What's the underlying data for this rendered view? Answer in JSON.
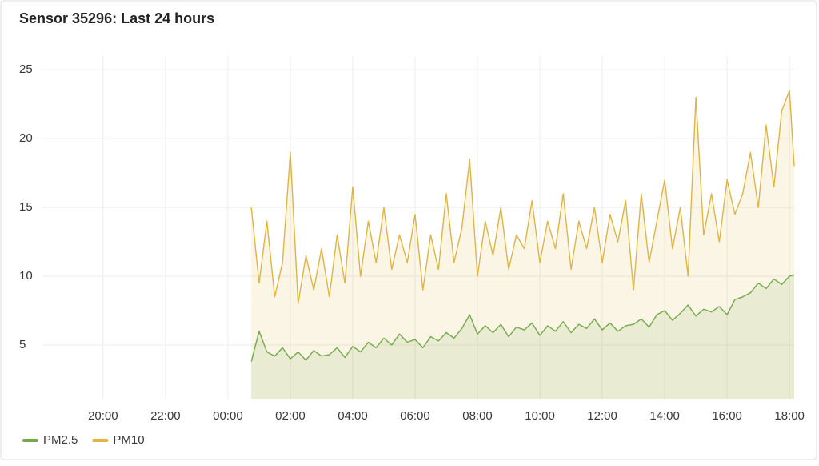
{
  "chart_data": {
    "type": "line",
    "title": "Sensor 35296: Last 24 hours",
    "x": [
      0.75,
      1,
      1.25,
      1.5,
      1.75,
      2,
      2.25,
      2.5,
      2.75,
      3,
      3.25,
      3.5,
      3.75,
      4,
      4.25,
      4.5,
      4.75,
      5,
      5.25,
      5.5,
      5.75,
      6,
      6.25,
      6.5,
      6.75,
      7,
      7.25,
      7.5,
      7.75,
      8,
      8.25,
      8.5,
      8.75,
      9,
      9.25,
      9.5,
      9.75,
      10,
      10.25,
      10.5,
      10.75,
      11,
      11.25,
      11.5,
      11.75,
      12,
      12.25,
      12.5,
      12.75,
      13,
      13.25,
      13.5,
      13.75,
      14,
      14.25,
      14.5,
      14.75,
      15,
      15.25,
      15.5,
      15.75,
      16,
      16.25,
      16.5,
      16.75,
      17,
      17.25,
      17.5,
      17.75,
      18,
      18.15
    ],
    "series": [
      {
        "name": "PM2.5",
        "color": "#73a84a",
        "values": [
          3.8,
          6,
          4.5,
          4.2,
          4.8,
          4,
          4.5,
          3.9,
          4.6,
          4.2,
          4.3,
          4.8,
          4.1,
          4.9,
          4.5,
          5.2,
          4.8,
          5.5,
          5,
          5.8,
          5.2,
          5.4,
          4.8,
          5.6,
          5.3,
          5.9,
          5.5,
          6.2,
          7.2,
          5.8,
          6.4,
          5.9,
          6.5,
          5.6,
          6.3,
          6.1,
          6.6,
          5.7,
          6.4,
          6,
          6.7,
          5.9,
          6.5,
          6.2,
          6.9,
          6.1,
          6.6,
          6,
          6.4,
          6.5,
          6.9,
          6.3,
          7.2,
          7.5,
          6.8,
          7.3,
          7.9,
          7.1,
          7.6,
          7.4,
          7.8,
          7.2,
          8.3,
          8.5,
          8.8,
          9.5,
          9.1,
          9.8,
          9.4,
          10,
          10.1
        ]
      },
      {
        "name": "PM10",
        "color": "#e0b441",
        "values": [
          15,
          9.5,
          14,
          8.5,
          11,
          19,
          8,
          11.5,
          9,
          12,
          8.5,
          13,
          9.5,
          16.5,
          10,
          14,
          11,
          15,
          10.5,
          13,
          11,
          14.5,
          9,
          13,
          10.5,
          16,
          11,
          13.5,
          18.5,
          10,
          14,
          11.5,
          15,
          10.5,
          13,
          12,
          15.5,
          11,
          14,
          12,
          16,
          10.5,
          14,
          12,
          15,
          11,
          14.5,
          12.5,
          15.5,
          9,
          16,
          11,
          14,
          17,
          12,
          15,
          10,
          23,
          13,
          16,
          12.5,
          17,
          14.5,
          16,
          19,
          15,
          21,
          16.5,
          22,
          23.5,
          18
        ]
      }
    ],
    "xlim": [
      -5.97,
      18.15
    ],
    "xticks": [
      {
        "value": -4,
        "label": "20:00"
      },
      {
        "value": -2,
        "label": "22:00"
      },
      {
        "value": 0,
        "label": "00:00"
      },
      {
        "value": 2,
        "label": "02:00"
      },
      {
        "value": 4,
        "label": "04:00"
      },
      {
        "value": 6,
        "label": "06:00"
      },
      {
        "value": 8,
        "label": "08:00"
      },
      {
        "value": 10,
        "label": "10:00"
      },
      {
        "value": 12,
        "label": "12:00"
      },
      {
        "value": 14,
        "label": "14:00"
      },
      {
        "value": 16,
        "label": "16:00"
      },
      {
        "value": 18,
        "label": "18:00"
      }
    ],
    "ylim": [
      1.1,
      26
    ],
    "yticks": [
      5,
      10,
      15,
      20,
      25
    ],
    "grid": true,
    "legend": "bottom-left"
  }
}
